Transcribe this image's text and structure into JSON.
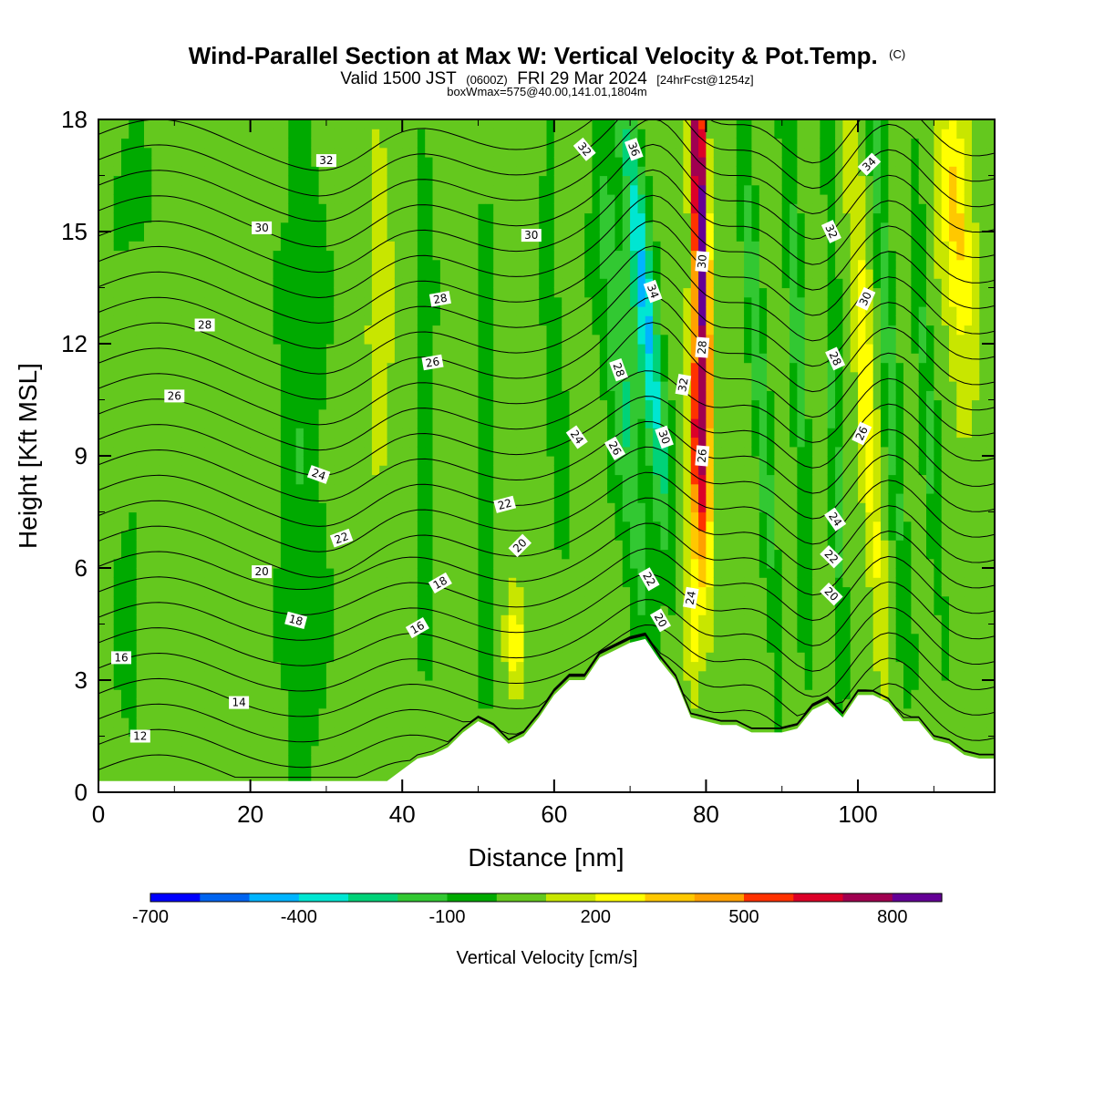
{
  "chart_data": {
    "type": "heatmap",
    "title": "Wind-Parallel Section at Max W: Vertical Velocity & Pot.Temp.",
    "title_mark": "(C)",
    "subtitle": {
      "valid": "Valid 1500 JST",
      "utc": "(0600Z)",
      "date": "FRI 29 Mar 2024",
      "forecast": "[24hrFcst@1254z]"
    },
    "box_info": "boxWmax=575@40.00,141.01,1804m",
    "xlabel": "Distance [nm]",
    "ylabel": "Height [Kft MSL]",
    "xlim": [
      0,
      118
    ],
    "ylim": [
      0,
      18
    ],
    "x_ticks": [
      0,
      20,
      40,
      60,
      80,
      100
    ],
    "y_ticks": [
      0,
      3,
      6,
      9,
      12,
      15,
      18
    ],
    "colorbar": {
      "label": "Vertical Velocity [cm/s]",
      "tick_labels": [
        "-700",
        "-400",
        "-100",
        "200",
        "500",
        "800"
      ],
      "tick_values": [
        -700,
        -400,
        -100,
        200,
        500,
        800
      ],
      "levels": [
        -700,
        -600,
        -500,
        -400,
        -300,
        -200,
        -100,
        0,
        100,
        200,
        300,
        400,
        500,
        600,
        700,
        800,
        900
      ],
      "colors": [
        "#0000ff",
        "#0064f0",
        "#00b4ff",
        "#00e6d2",
        "#00d278",
        "#32c832",
        "#00aa00",
        "#64c81e",
        "#c8e600",
        "#ffff00",
        "#ffc800",
        "#ffa000",
        "#ff3200",
        "#dc0028",
        "#a00050",
        "#640096"
      ]
    },
    "terrain_height_kft": {
      "x": [
        0,
        2,
        4,
        6,
        8,
        10,
        12,
        14,
        16,
        18,
        20,
        22,
        24,
        26,
        28,
        30,
        32,
        34,
        36,
        38,
        40,
        42,
        44,
        46,
        48,
        50,
        52,
        54,
        56,
        58,
        60,
        62,
        64,
        66,
        68,
        70,
        72,
        74,
        76,
        78,
        80,
        82,
        84,
        86,
        88,
        90,
        92,
        94,
        96,
        98,
        100,
        102,
        104,
        106,
        108,
        110,
        112,
        114,
        116,
        118
      ],
      "h": [
        0.3,
        0.3,
        0.3,
        0.3,
        0.3,
        0.3,
        0.3,
        0.3,
        0.3,
        0.3,
        0.3,
        0.3,
        0.3,
        0.3,
        0.3,
        0.3,
        0.3,
        0.3,
        0.3,
        0.3,
        0.6,
        0.9,
        1.0,
        1.2,
        1.6,
        1.9,
        1.7,
        1.3,
        1.5,
        2.0,
        2.6,
        3.0,
        3.0,
        3.6,
        3.8,
        4.0,
        4.1,
        3.5,
        3.0,
        2.0,
        1.9,
        1.8,
        1.8,
        1.6,
        1.6,
        1.6,
        1.7,
        2.2,
        2.4,
        2.0,
        2.6,
        2.6,
        2.4,
        1.9,
        1.9,
        1.4,
        1.3,
        1.0,
        0.9,
        0.9
      ]
    },
    "theta_contour_labels": [
      "12",
      "14",
      "16",
      "18",
      "20",
      "22",
      "24",
      "26",
      "28",
      "30",
      "32",
      "34",
      "36"
    ],
    "theta_labels_placed": [
      {
        "t": "32",
        "x": 30,
        "y": 16.9,
        "r": 0
      },
      {
        "t": "30",
        "x": 21.5,
        "y": 15.1,
        "r": 0
      },
      {
        "t": "28",
        "x": 14,
        "y": 12.5,
        "r": 0
      },
      {
        "t": "26",
        "x": 10,
        "y": 10.6,
        "r": 0
      },
      {
        "t": "24",
        "x": 29,
        "y": 8.5,
        "r": 20
      },
      {
        "t": "22",
        "x": 32,
        "y": 6.8,
        "r": -20
      },
      {
        "t": "20",
        "x": 21.5,
        "y": 5.9,
        "r": 0
      },
      {
        "t": "18",
        "x": 26,
        "y": 4.6,
        "r": 15
      },
      {
        "t": "16",
        "x": 3,
        "y": 3.6,
        "r": 0
      },
      {
        "t": "14",
        "x": 18.5,
        "y": 2.4,
        "r": 0
      },
      {
        "t": "12",
        "x": 5.5,
        "y": 1.5,
        "r": 0
      },
      {
        "t": "30",
        "x": 57,
        "y": 14.9,
        "r": 0
      },
      {
        "t": "28",
        "x": 45,
        "y": 13.2,
        "r": -10
      },
      {
        "t": "26",
        "x": 44,
        "y": 11.5,
        "r": -10
      },
      {
        "t": "22",
        "x": 53.5,
        "y": 7.7,
        "r": -15
      },
      {
        "t": "20",
        "x": 55.5,
        "y": 6.6,
        "r": -45
      },
      {
        "t": "18",
        "x": 45,
        "y": 5.6,
        "r": -30
      },
      {
        "t": "16",
        "x": 42,
        "y": 4.4,
        "r": -30
      },
      {
        "t": "32",
        "x": 64,
        "y": 17.2,
        "r": 50
      },
      {
        "t": "36",
        "x": 70.5,
        "y": 17.2,
        "r": 70
      },
      {
        "t": "34",
        "x": 73,
        "y": 13.4,
        "r": 70
      },
      {
        "t": "28",
        "x": 68.5,
        "y": 11.3,
        "r": 70
      },
      {
        "t": "24",
        "x": 63,
        "y": 9.5,
        "r": 55
      },
      {
        "t": "26",
        "x": 68,
        "y": 9.2,
        "r": 60
      },
      {
        "t": "30",
        "x": 74.5,
        "y": 9.5,
        "r": 70
      },
      {
        "t": "32",
        "x": 77,
        "y": 10.9,
        "r": -80
      },
      {
        "t": "30",
        "x": 79.5,
        "y": 14.2,
        "r": -85
      },
      {
        "t": "28",
        "x": 79.5,
        "y": 11.9,
        "r": -85
      },
      {
        "t": "26",
        "x": 79.5,
        "y": 9.0,
        "r": -85
      },
      {
        "t": "24",
        "x": 78,
        "y": 5.2,
        "r": -80
      },
      {
        "t": "22",
        "x": 72.5,
        "y": 5.7,
        "r": 60
      },
      {
        "t": "20",
        "x": 74,
        "y": 4.6,
        "r": 60
      },
      {
        "t": "34",
        "x": 101.5,
        "y": 16.8,
        "r": -45
      },
      {
        "t": "32",
        "x": 96.5,
        "y": 15.0,
        "r": 65
      },
      {
        "t": "30",
        "x": 101,
        "y": 13.2,
        "r": -65
      },
      {
        "t": "28",
        "x": 97,
        "y": 11.6,
        "r": 65
      },
      {
        "t": "26",
        "x": 100.5,
        "y": 9.6,
        "r": -65
      },
      {
        "t": "24",
        "x": 97,
        "y": 7.3,
        "r": 55
      },
      {
        "t": "22",
        "x": 96.5,
        "y": 6.3,
        "r": 45
      },
      {
        "t": "20",
        "x": 96.5,
        "y": 5.3,
        "r": 45
      }
    ],
    "w_features": [
      {
        "x": 79.2,
        "y": 15.5,
        "sx": 1.0,
        "sy": 6.0,
        "tilt": 0.15,
        "amp": 900
      },
      {
        "x": 79.0,
        "y": 9.0,
        "sx": 1.1,
        "sy": 3.5,
        "tilt": 0.15,
        "amp": 600
      },
      {
        "x": 78.2,
        "y": 4.5,
        "sx": 1.0,
        "sy": 2.0,
        "tilt": 0.0,
        "amp": 250
      },
      {
        "x": 72.0,
        "y": 13.0,
        "sx": 1.5,
        "sy": 6.0,
        "tilt": 0.45,
        "amp": -450
      },
      {
        "x": 69.0,
        "y": 11.0,
        "sx": 2.0,
        "sy": 7.0,
        "tilt": 0.45,
        "amp": -250
      },
      {
        "x": 87.0,
        "y": 11.0,
        "sx": 1.0,
        "sy": 8.0,
        "tilt": 0.3,
        "amp": -230
      },
      {
        "x": 92.0,
        "y": 12.0,
        "sx": 1.0,
        "sy": 7.0,
        "tilt": 0.2,
        "amp": -200
      },
      {
        "x": 97.0,
        "y": 10.0,
        "sx": 0.8,
        "sy": 9.0,
        "tilt": 0.1,
        "amp": -180
      },
      {
        "x": 104.0,
        "y": 12.0,
        "sx": 1.0,
        "sy": 8.0,
        "tilt": 0.3,
        "amp": -220
      },
      {
        "x": 109.0,
        "y": 11.0,
        "sx": 1.0,
        "sy": 7.0,
        "tilt": 0.3,
        "amp": -160
      },
      {
        "x": 101.0,
        "y": 11.0,
        "sx": 1.2,
        "sy": 7.0,
        "tilt": 0.3,
        "amp": 250
      },
      {
        "x": 113.0,
        "y": 15.0,
        "sx": 2.0,
        "sy": 4.0,
        "tilt": 0.3,
        "amp": 300
      },
      {
        "x": 37.0,
        "y": 13.0,
        "sx": 1.5,
        "sy": 3.5,
        "tilt": 0.0,
        "amp": 200
      },
      {
        "x": 55.0,
        "y": 4.0,
        "sx": 1.2,
        "sy": 1.5,
        "tilt": 0.0,
        "amp": 200
      },
      {
        "x": 27.0,
        "y": 9.0,
        "sx": 3.0,
        "sy": 10.0,
        "tilt": 0.0,
        "amp": -120
      },
      {
        "x": 4.0,
        "y": 4.5,
        "sx": 1.5,
        "sy": 2.5,
        "tilt": 0.0,
        "amp": -130
      },
      {
        "x": 4.5,
        "y": 16.0,
        "sx": 2.5,
        "sy": 1.6,
        "tilt": 0.0,
        "amp": -110
      },
      {
        "x": 43.0,
        "y": 12.0,
        "sx": 1.2,
        "sy": 8.0,
        "tilt": 0.0,
        "amp": -110
      },
      {
        "x": 51.0,
        "y": 9.0,
        "sx": 1.0,
        "sy": 8.0,
        "tilt": 0.0,
        "amp": -100
      },
      {
        "x": 60.0,
        "y": 12.0,
        "sx": 1.2,
        "sy": 7.0,
        "tilt": 0.2,
        "amp": -100
      }
    ]
  }
}
